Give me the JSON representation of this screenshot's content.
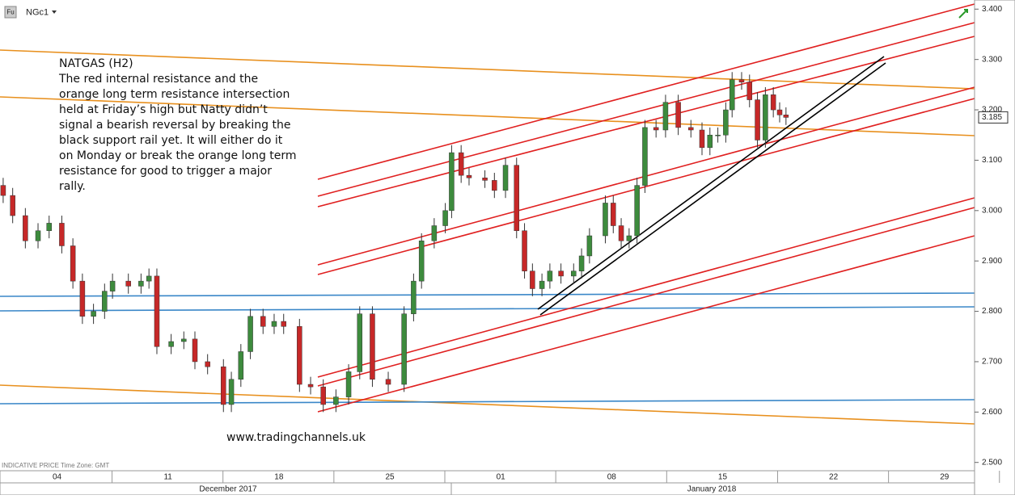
{
  "chart_data": {
    "type": "candlestick",
    "symbol": "NGc1",
    "badge": "Fu",
    "title": "NATGAS (H2)",
    "annotation": [
      "The red internal resistance and the",
      "orange long term resistance intersection",
      "held at Friday’s high but Natty didn’t",
      "signal a bearish reversal by breaking the",
      "black support rail yet. It will either do it",
      "on Monday or break the orange long term",
      "resistance for good to trigger a major",
      "rally."
    ],
    "watermark": "www.tradingchannels.uk",
    "footer_note": "INDICATIVE PRICE   Time Zone: GMT",
    "months": [
      "December 2017",
      "January 2018"
    ],
    "up_color": "#3d8b3d",
    "down_color": "#c62828",
    "x": [
      0.6,
      1.2,
      2,
      2.8,
      3.5,
      4.3,
      5,
      5.6,
      6.3,
      7,
      7.5,
      8.5,
      9.3,
      9.8,
      10.3,
      11.2,
      12,
      12.7,
      13.5,
      14.5,
      15,
      15.6,
      16.2,
      17,
      17.7,
      18.3,
      19.3,
      20,
      20.8,
      21.6,
      22.4,
      23.1,
      23.9,
      24.9,
      25.9,
      26.5,
      27,
      27.8,
      28.5,
      28.9,
      29.5,
      30,
      31,
      31.6,
      32.3,
      33,
      33.5,
      34,
      34.6,
      35.1,
      35.8,
      36.6,
      37.1,
      37.6,
      38.6,
      39.1,
      39.6,
      40.1,
      40.6,
      41.1,
      41.8,
      42.4,
      43.2,
      44,
      44.7,
      45.2,
      45.7,
      46.2,
      46.6,
      47.2,
      47.7,
      48.2,
      48.7,
      49.2,
      49.6,
      50
    ],
    "open": [
      3.05,
      3.03,
      2.99,
      2.94,
      2.96,
      2.975,
      2.93,
      2.86,
      2.79,
      2.8,
      2.84,
      2.86,
      2.85,
      2.86,
      2.87,
      2.73,
      2.74,
      2.745,
      2.7,
      2.69,
      2.615,
      2.665,
      2.72,
      2.79,
      2.77,
      2.78,
      2.77,
      2.655,
      2.65,
      2.615,
      2.63,
      2.68,
      2.795,
      2.665,
      2.655,
      2.795,
      2.86,
      2.94,
      2.97,
      3.0,
      3.115,
      3.07,
      3.065,
      3.06,
      3.04,
      3.09,
      2.96,
      2.88,
      2.845,
      2.86,
      2.88,
      2.87,
      2.88,
      2.91,
      2.95,
      3.015,
      2.97,
      2.94,
      2.95,
      3.05,
      3.165,
      3.16,
      3.215,
      3.165,
      3.16,
      3.125,
      3.15,
      3.15,
      3.2,
      3.26,
      3.255,
      3.22,
      3.14,
      3.23,
      3.2,
      3.19
    ],
    "high": [
      3.065,
      3.045,
      3.005,
      2.975,
      2.99,
      2.99,
      2.945,
      2.875,
      2.815,
      2.855,
      2.875,
      2.875,
      2.875,
      2.885,
      2.885,
      2.755,
      2.76,
      2.76,
      2.715,
      2.705,
      2.68,
      2.735,
      2.805,
      2.805,
      2.795,
      2.795,
      2.785,
      2.67,
      2.665,
      2.645,
      2.695,
      2.81,
      2.81,
      2.68,
      2.81,
      2.875,
      2.955,
      2.985,
      3.015,
      3.13,
      3.13,
      3.085,
      3.08,
      3.075,
      3.105,
      3.105,
      2.975,
      2.895,
      2.875,
      2.895,
      2.895,
      2.895,
      2.925,
      2.965,
      3.03,
      3.03,
      2.985,
      2.965,
      3.065,
      3.18,
      3.18,
      3.23,
      3.23,
      3.18,
      3.175,
      3.165,
      3.165,
      3.215,
      3.275,
      3.275,
      3.27,
      3.235,
      3.245,
      3.245,
      3.215,
      3.205
    ],
    "low": [
      3.015,
      2.975,
      2.925,
      2.925,
      2.945,
      2.915,
      2.845,
      2.775,
      2.775,
      2.785,
      2.825,
      2.835,
      2.835,
      2.845,
      2.715,
      2.715,
      2.725,
      2.685,
      2.675,
      2.6,
      2.6,
      2.65,
      2.705,
      2.755,
      2.755,
      2.755,
      2.64,
      2.635,
      2.6,
      2.6,
      2.615,
      2.665,
      2.65,
      2.64,
      2.64,
      2.78,
      2.845,
      2.925,
      2.955,
      2.985,
      3.055,
      3.05,
      3.045,
      3.025,
      3.025,
      2.945,
      2.865,
      2.83,
      2.83,
      2.845,
      2.855,
      2.855,
      2.865,
      2.895,
      2.935,
      2.955,
      2.925,
      2.925,
      2.935,
      3.035,
      3.145,
      3.145,
      3.15,
      3.145,
      3.11,
      3.11,
      3.135,
      3.135,
      3.185,
      3.24,
      3.205,
      3.125,
      3.125,
      3.185,
      3.175,
      3.17
    ],
    "close": [
      3.03,
      2.99,
      2.94,
      2.96,
      2.975,
      2.93,
      2.86,
      2.79,
      2.8,
      2.84,
      2.86,
      2.85,
      2.86,
      2.87,
      2.73,
      2.74,
      2.745,
      2.7,
      2.69,
      2.615,
      2.665,
      2.72,
      2.79,
      2.77,
      2.78,
      2.77,
      2.655,
      2.65,
      2.615,
      2.63,
      2.68,
      2.795,
      2.665,
      2.655,
      2.795,
      2.86,
      2.94,
      2.97,
      3.0,
      3.115,
      3.07,
      3.065,
      3.06,
      3.04,
      3.09,
      2.96,
      2.88,
      2.845,
      2.86,
      2.88,
      2.87,
      2.88,
      2.91,
      2.95,
      3.015,
      2.97,
      2.94,
      2.95,
      3.05,
      3.165,
      3.16,
      3.215,
      3.165,
      3.16,
      3.125,
      3.15,
      3.15,
      3.2,
      3.26,
      3.255,
      3.22,
      3.14,
      3.23,
      3.2,
      3.19,
      3.185
    ],
    "last_price": 3.185,
    "xlim": [
      0.4,
      61.9
    ],
    "xticks": [
      {
        "value": 4,
        "label": "04"
      },
      11,
      18,
      25,
      {
        "value": 32,
        "label": "01"
      },
      {
        "value": 39,
        "label": "08"
      },
      {
        "value": 46,
        "label": "15"
      },
      {
        "value": 53,
        "label": "22"
      },
      {
        "value": 60,
        "label": "29"
      }
    ],
    "ylim": [
      2.4835,
      3.4181
    ],
    "yticks": [
      {
        "value": 3.4,
        "label": "3.400"
      },
      {
        "value": 3.3,
        "label": "3.300"
      },
      {
        "value": 3.2,
        "label": "3.200"
      },
      {
        "value": 3.1,
        "label": "3.100"
      },
      {
        "value": 3.0,
        "label": "3.000"
      },
      {
        "value": 2.9,
        "label": "2.900"
      },
      {
        "value": 2.8,
        "label": "2.800"
      },
      {
        "value": 2.7,
        "label": "2.700"
      },
      {
        "value": 2.6,
        "label": "2.600"
      },
      {
        "value": 2.5,
        "label": "2.500"
      }
    ]
  }
}
